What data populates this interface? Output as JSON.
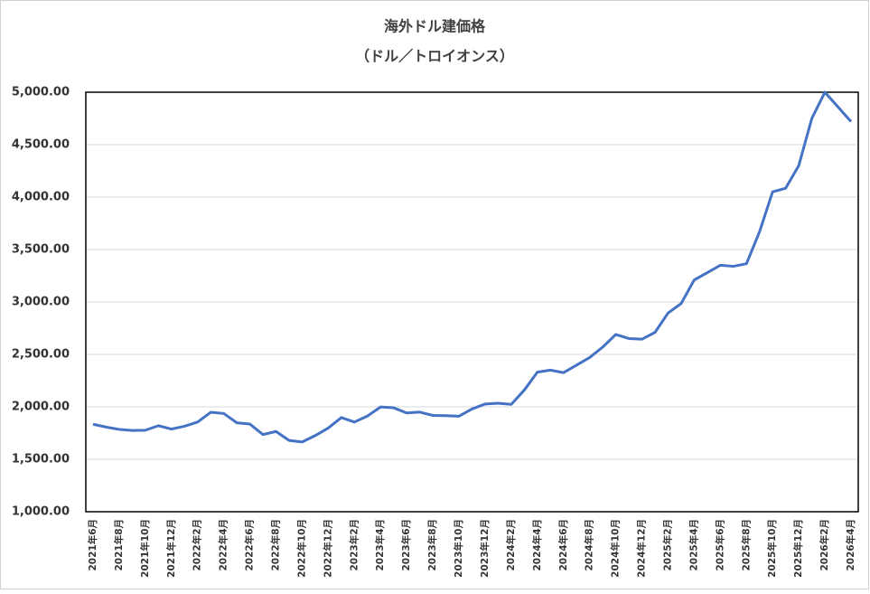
{
  "chart_data": {
    "type": "line",
    "title": "海外ドル建価格",
    "subtitle": "（ドル／トロイオンス）",
    "categories": [
      "2021年6月",
      null,
      "2021年8月",
      null,
      "2021年10月",
      null,
      "2021年12月",
      null,
      "2022年2月",
      null,
      "2022年4月",
      null,
      "2022年6月",
      null,
      "2022年8月",
      null,
      "2022年10月",
      null,
      "2022年12月",
      null,
      "2023年2月",
      null,
      "2023年4月",
      null,
      "2023年6月",
      null,
      "2023年8月",
      null,
      "2023年10月",
      null,
      "2023年12月",
      null,
      "2024年2月",
      null,
      "2024年4月",
      null,
      "2024年6月",
      null,
      "2024年8月",
      null,
      "2024年10月",
      null,
      "2024年12月",
      null,
      "2025年2月",
      null,
      "2025年4月",
      null,
      "2025年6月",
      null,
      "2025年8月",
      null,
      "2025年10月",
      null,
      "2025年12月",
      null,
      "2026年2月",
      null,
      "2026年4月"
    ],
    "series": [
      {
        "name": "海外ドル建価格",
        "color": "#4472c4",
        "values": [
          1834,
          1807,
          1785,
          1775,
          1777,
          1820,
          1788,
          1815,
          1855,
          1948,
          1937,
          1848,
          1836,
          1736,
          1765,
          1680,
          1665,
          1726,
          1798,
          1898,
          1855,
          1913,
          1999,
          1991,
          1942,
          1950,
          1918,
          1916,
          1911,
          1980,
          2027,
          2034,
          2024,
          2160,
          2331,
          2350,
          2326,
          2398,
          2470,
          2570,
          2690,
          2651,
          2645,
          2710,
          2895,
          2985,
          3210,
          3280,
          3350,
          3340,
          3365,
          3670,
          4050,
          4085,
          4300,
          4750,
          5000,
          4860,
          4720
        ]
      }
    ],
    "ylim": [
      1000,
      5000
    ],
    "yticks": [
      {
        "value": 1000,
        "label": "1,000.00"
      },
      {
        "value": 1500,
        "label": "1,500.00"
      },
      {
        "value": 2000,
        "label": "2,000.00"
      },
      {
        "value": 2500,
        "label": "2,500.00"
      },
      {
        "value": 3000,
        "label": "3,000.00"
      },
      {
        "value": 3500,
        "label": "3,500.00"
      },
      {
        "value": 4000,
        "label": "4,000.00"
      },
      {
        "value": 4500,
        "label": "4,500.00"
      },
      {
        "value": 5000,
        "label": "5,000.00"
      }
    ],
    "grid": true
  }
}
